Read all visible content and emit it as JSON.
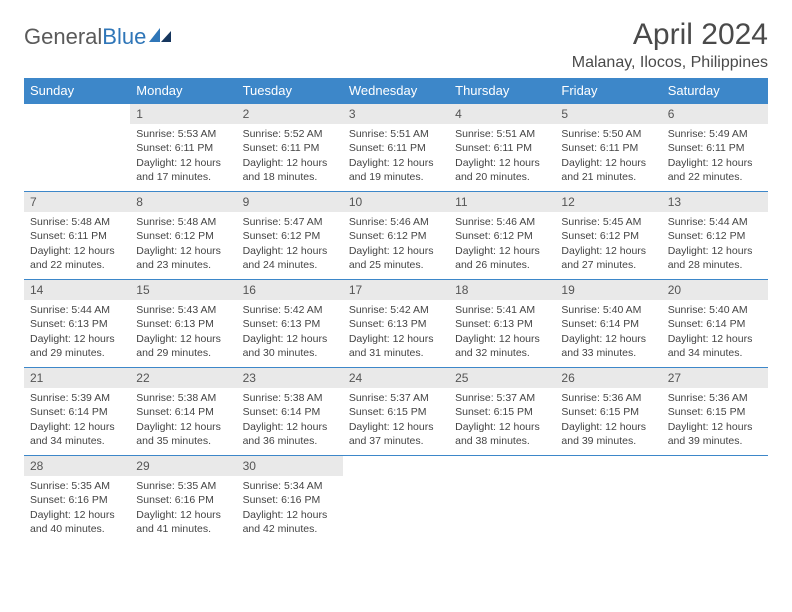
{
  "logo": {
    "text1": "General",
    "text2": "Blue"
  },
  "title": "April 2024",
  "location": "Malanay, Ilocos, Philippines",
  "colors": {
    "header_bg": "#3d87c9",
    "daynum_bg": "#e9e9e9",
    "rule": "#3d87c9"
  },
  "weekdays": [
    "Sunday",
    "Monday",
    "Tuesday",
    "Wednesday",
    "Thursday",
    "Friday",
    "Saturday"
  ],
  "weeks": [
    [
      null,
      {
        "n": "1",
        "sr": "5:53 AM",
        "ss": "6:11 PM",
        "dl": "12 hours and 17 minutes."
      },
      {
        "n": "2",
        "sr": "5:52 AM",
        "ss": "6:11 PM",
        "dl": "12 hours and 18 minutes."
      },
      {
        "n": "3",
        "sr": "5:51 AM",
        "ss": "6:11 PM",
        "dl": "12 hours and 19 minutes."
      },
      {
        "n": "4",
        "sr": "5:51 AM",
        "ss": "6:11 PM",
        "dl": "12 hours and 20 minutes."
      },
      {
        "n": "5",
        "sr": "5:50 AM",
        "ss": "6:11 PM",
        "dl": "12 hours and 21 minutes."
      },
      {
        "n": "6",
        "sr": "5:49 AM",
        "ss": "6:11 PM",
        "dl": "12 hours and 22 minutes."
      }
    ],
    [
      {
        "n": "7",
        "sr": "5:48 AM",
        "ss": "6:11 PM",
        "dl": "12 hours and 22 minutes."
      },
      {
        "n": "8",
        "sr": "5:48 AM",
        "ss": "6:12 PM",
        "dl": "12 hours and 23 minutes."
      },
      {
        "n": "9",
        "sr": "5:47 AM",
        "ss": "6:12 PM",
        "dl": "12 hours and 24 minutes."
      },
      {
        "n": "10",
        "sr": "5:46 AM",
        "ss": "6:12 PM",
        "dl": "12 hours and 25 minutes."
      },
      {
        "n": "11",
        "sr": "5:46 AM",
        "ss": "6:12 PM",
        "dl": "12 hours and 26 minutes."
      },
      {
        "n": "12",
        "sr": "5:45 AM",
        "ss": "6:12 PM",
        "dl": "12 hours and 27 minutes."
      },
      {
        "n": "13",
        "sr": "5:44 AM",
        "ss": "6:12 PM",
        "dl": "12 hours and 28 minutes."
      }
    ],
    [
      {
        "n": "14",
        "sr": "5:44 AM",
        "ss": "6:13 PM",
        "dl": "12 hours and 29 minutes."
      },
      {
        "n": "15",
        "sr": "5:43 AM",
        "ss": "6:13 PM",
        "dl": "12 hours and 29 minutes."
      },
      {
        "n": "16",
        "sr": "5:42 AM",
        "ss": "6:13 PM",
        "dl": "12 hours and 30 minutes."
      },
      {
        "n": "17",
        "sr": "5:42 AM",
        "ss": "6:13 PM",
        "dl": "12 hours and 31 minutes."
      },
      {
        "n": "18",
        "sr": "5:41 AM",
        "ss": "6:13 PM",
        "dl": "12 hours and 32 minutes."
      },
      {
        "n": "19",
        "sr": "5:40 AM",
        "ss": "6:14 PM",
        "dl": "12 hours and 33 minutes."
      },
      {
        "n": "20",
        "sr": "5:40 AM",
        "ss": "6:14 PM",
        "dl": "12 hours and 34 minutes."
      }
    ],
    [
      {
        "n": "21",
        "sr": "5:39 AM",
        "ss": "6:14 PM",
        "dl": "12 hours and 34 minutes."
      },
      {
        "n": "22",
        "sr": "5:38 AM",
        "ss": "6:14 PM",
        "dl": "12 hours and 35 minutes."
      },
      {
        "n": "23",
        "sr": "5:38 AM",
        "ss": "6:14 PM",
        "dl": "12 hours and 36 minutes."
      },
      {
        "n": "24",
        "sr": "5:37 AM",
        "ss": "6:15 PM",
        "dl": "12 hours and 37 minutes."
      },
      {
        "n": "25",
        "sr": "5:37 AM",
        "ss": "6:15 PM",
        "dl": "12 hours and 38 minutes."
      },
      {
        "n": "26",
        "sr": "5:36 AM",
        "ss": "6:15 PM",
        "dl": "12 hours and 39 minutes."
      },
      {
        "n": "27",
        "sr": "5:36 AM",
        "ss": "6:15 PM",
        "dl": "12 hours and 39 minutes."
      }
    ],
    [
      {
        "n": "28",
        "sr": "5:35 AM",
        "ss": "6:16 PM",
        "dl": "12 hours and 40 minutes."
      },
      {
        "n": "29",
        "sr": "5:35 AM",
        "ss": "6:16 PM",
        "dl": "12 hours and 41 minutes."
      },
      {
        "n": "30",
        "sr": "5:34 AM",
        "ss": "6:16 PM",
        "dl": "12 hours and 42 minutes."
      },
      null,
      null,
      null,
      null
    ]
  ],
  "labels": {
    "sunrise": "Sunrise:",
    "sunset": "Sunset:",
    "daylight": "Daylight:"
  }
}
